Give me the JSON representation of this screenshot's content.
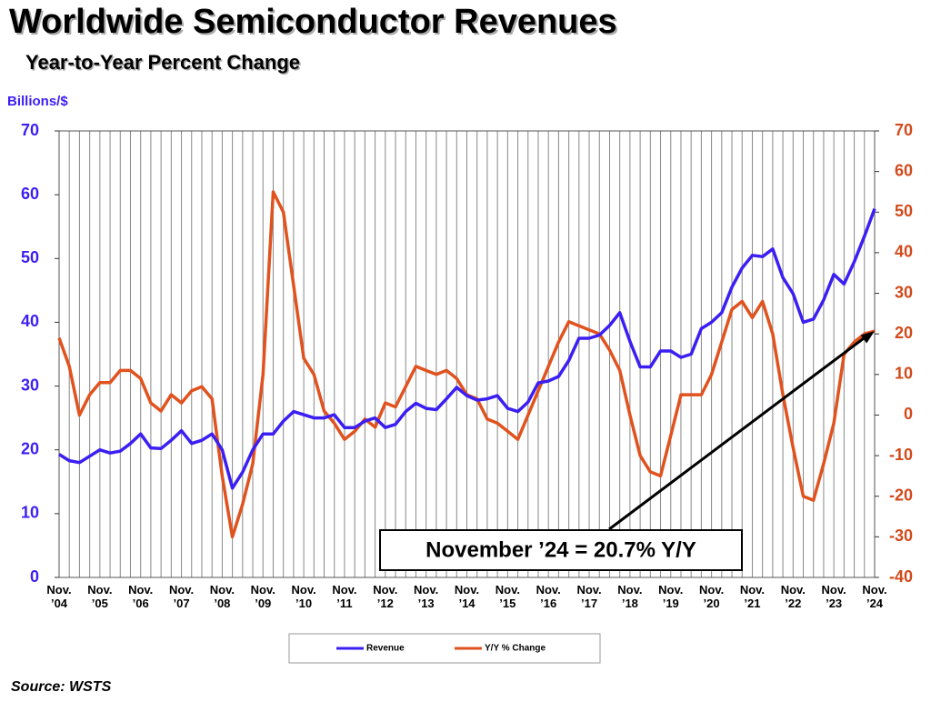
{
  "chart_data": {
    "type": "line",
    "title": "Worldwide Semiconductor Revenues",
    "subtitle": "Year-to-Year Percent Change",
    "y_label": "Billions/$",
    "annotation": "November ’24 = 20.7% Y/Y",
    "source": "Source: WSTS",
    "categories": [
      "Nov. ’04",
      null,
      null,
      null,
      "Nov. ’05",
      null,
      null,
      null,
      "Nov. ’06",
      null,
      null,
      null,
      "Nov. ’07",
      null,
      null,
      null,
      "Nov. ’08",
      null,
      null,
      null,
      "Nov. ’09",
      null,
      null,
      null,
      "Nov. ’10",
      null,
      null,
      null,
      "Nov. ’11",
      null,
      null,
      null,
      "Nov. ’12",
      null,
      null,
      null,
      "Nov. ’13",
      null,
      null,
      null,
      "Nov. ’14",
      null,
      null,
      null,
      "Nov. ’15",
      null,
      null,
      null,
      "Nov. ’16",
      null,
      null,
      null,
      "Nov. ’17",
      null,
      null,
      null,
      "Nov. ’18",
      null,
      null,
      null,
      "Nov. ’19",
      null,
      null,
      null,
      "Nov. ’20",
      null,
      null,
      null,
      "Nov. ’21",
      null,
      null,
      null,
      "Nov. ’22",
      null,
      null,
      null,
      "Nov. ’23",
      null,
      null,
      null,
      "Nov. ’24"
    ],
    "series": [
      {
        "name": "Revenue",
        "color": "#3b1ff2",
        "axis": "y",
        "values": [
          19.3,
          18.3,
          18.0,
          19.0,
          20.0,
          19.5,
          19.8,
          21.0,
          22.5,
          20.3,
          20.2,
          21.5,
          23.0,
          21.0,
          21.5,
          22.5,
          20.0,
          14.0,
          16.5,
          20.0,
          22.5,
          22.5,
          24.5,
          26.0,
          25.5,
          25.0,
          25.0,
          25.5,
          23.5,
          23.5,
          24.5,
          25.0,
          23.5,
          24.0,
          26.0,
          27.3,
          26.5,
          26.3,
          28.0,
          29.8,
          28.5,
          27.8,
          28.0,
          28.5,
          26.5,
          26.0,
          27.5,
          30.5,
          30.8,
          31.5,
          34.0,
          37.5,
          37.5,
          38.0,
          39.5,
          41.5,
          37.0,
          33.0,
          33.0,
          35.5,
          35.5,
          34.5,
          35.0,
          39.0,
          40.0,
          41.5,
          45.5,
          48.5,
          50.5,
          50.3,
          51.5,
          47.0,
          44.5,
          40.0,
          40.5,
          43.5,
          47.5,
          46.0,
          49.5,
          53.5,
          57.8
        ]
      },
      {
        "name": "Y/Y % Change",
        "color": "#e0521e",
        "axis": "y2",
        "values": [
          19,
          12,
          0,
          5,
          8,
          8,
          11,
          11,
          9,
          3,
          1,
          5,
          3,
          6,
          7,
          4,
          -15,
          -30,
          -22,
          -12,
          10,
          55,
          50,
          32,
          14,
          10,
          1,
          -2,
          -6,
          -4,
          -1,
          -3,
          3,
          2,
          7,
          12,
          11,
          10,
          11,
          9,
          5,
          4,
          -1,
          -2,
          -4,
          -6,
          0,
          6,
          12,
          18,
          23,
          22,
          21,
          20,
          16,
          11,
          0,
          -10,
          -14,
          -15,
          -5,
          5,
          5,
          5,
          10,
          18,
          26,
          28,
          24,
          28,
          20,
          5,
          -8,
          -20,
          -21,
          -12,
          -2,
          15,
          18,
          20,
          20.7
        ]
      }
    ],
    "ylim": [
      0,
      70
    ],
    "yticks": [
      0,
      10,
      20,
      30,
      40,
      50,
      60,
      70
    ],
    "y2lim": [
      -40,
      70
    ],
    "y2ticks": [
      -40,
      -30,
      -20,
      -10,
      0,
      10,
      20,
      30,
      40,
      50,
      60,
      70
    ],
    "grid": "x",
    "legend": "bottom"
  }
}
